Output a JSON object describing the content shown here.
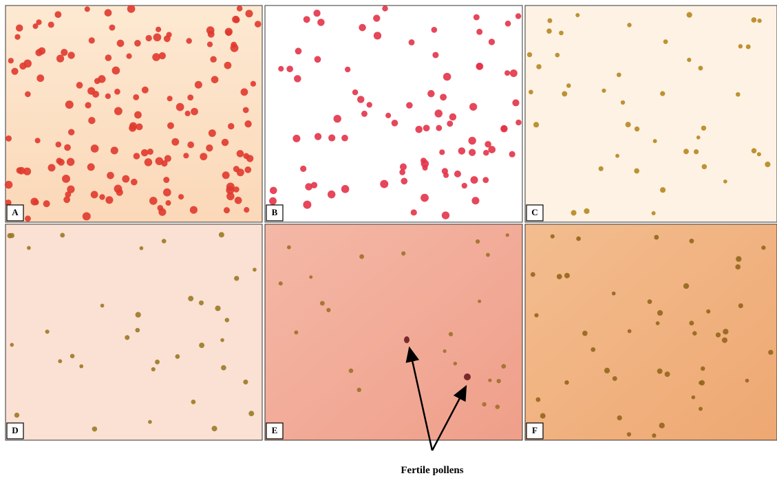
{
  "panels": [
    {
      "label": "A"
    },
    {
      "label": "B"
    },
    {
      "label": "C"
    },
    {
      "label": "D"
    },
    {
      "label": "E"
    },
    {
      "label": "F"
    }
  ],
  "annotation": "Fertile pollens"
}
